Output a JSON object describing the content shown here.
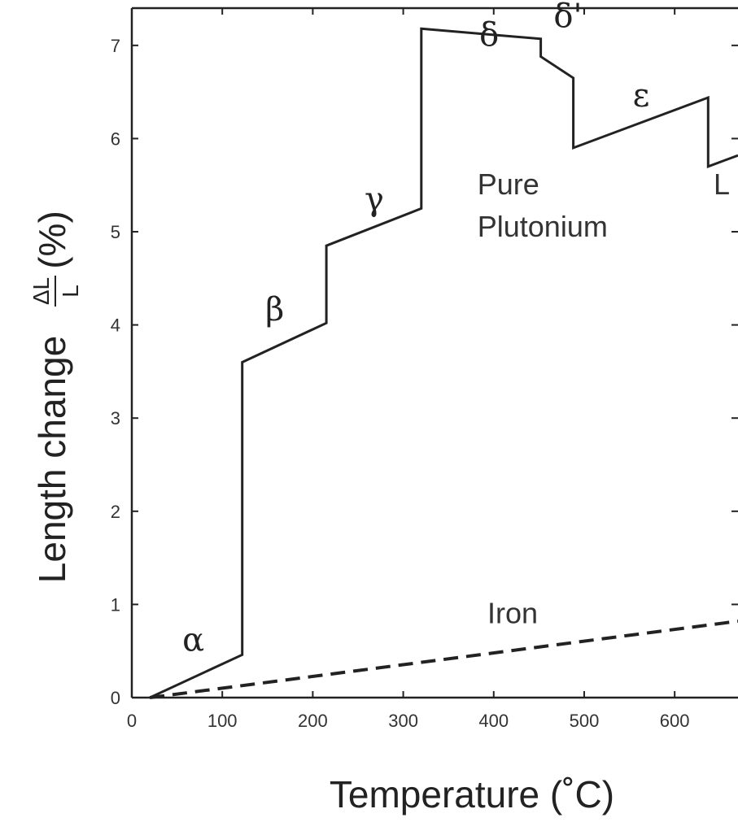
{
  "chart_data": {
    "type": "line",
    "xlabel": "Temperature (˚C)",
    "ylabel_prefix": "Length change",
    "ylabel_fraction_numerator": "ΔL",
    "ylabel_fraction_denominator": "L",
    "ylabel_suffix": "(%)",
    "xlim": [
      0,
      670
    ],
    "ylim": [
      0,
      7.4
    ],
    "x_ticks": [
      "0",
      "100",
      "200",
      "300",
      "400",
      "500",
      "600"
    ],
    "x_tick_values": [
      0,
      100,
      200,
      300,
      400,
      500,
      600
    ],
    "y_ticks": [
      "0",
      "1",
      "2",
      "3",
      "4",
      "5",
      "6",
      "7"
    ],
    "y_tick_values": [
      0,
      1,
      2,
      3,
      4,
      5,
      6,
      7
    ],
    "grid": false,
    "series": [
      {
        "name": "Pure Plutonium",
        "style": "solid",
        "color": "#222222",
        "points": [
          [
            20,
            0.0
          ],
          [
            122,
            0.46
          ],
          [
            122,
            3.6
          ],
          [
            215,
            4.02
          ],
          [
            215,
            4.85
          ],
          [
            320,
            5.25
          ],
          [
            320,
            7.18
          ],
          [
            452,
            7.07
          ],
          [
            452,
            6.88
          ],
          [
            488,
            6.65
          ],
          [
            488,
            5.9
          ],
          [
            637,
            6.44
          ],
          [
            637,
            5.7
          ],
          [
            670,
            5.82
          ]
        ]
      },
      {
        "name": "Iron",
        "style": "dashed",
        "color": "#222222",
        "points": [
          [
            20,
            0.0
          ],
          [
            670,
            0.82
          ]
        ]
      }
    ],
    "annotations": [
      {
        "text": "α",
        "x": 68,
        "y": 0.5
      },
      {
        "text": "β",
        "x": 158,
        "y": 4.05
      },
      {
        "text": "γ",
        "x": 268,
        "y": 5.23
      },
      {
        "text": "δ",
        "x": 395,
        "y": 7.0
      },
      {
        "text": "δ'",
        "x": 482,
        "y": 7.2
      },
      {
        "text": "ε",
        "x": 563,
        "y": 6.35
      },
      {
        "text": "L",
        "x": 652,
        "y": 5.4
      },
      {
        "text": "Pure",
        "x": 382,
        "y": 5.4
      },
      {
        "text": "Plutonium",
        "x": 382,
        "y": 4.95
      },
      {
        "text": "Iron",
        "x": 393,
        "y": 0.8
      }
    ]
  }
}
